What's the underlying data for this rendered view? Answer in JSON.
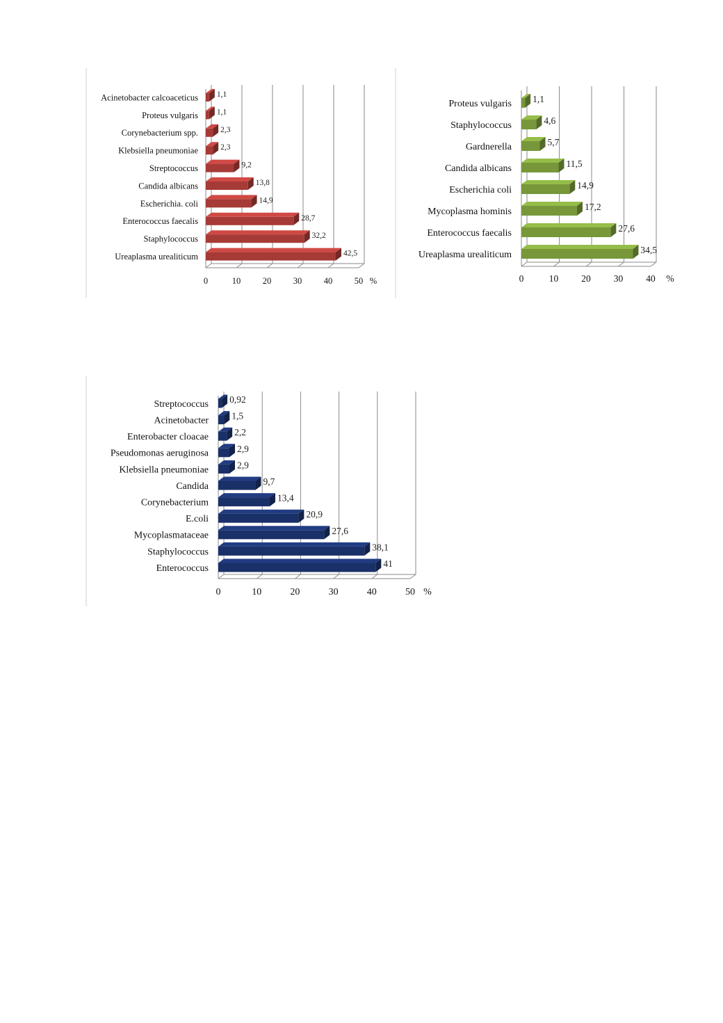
{
  "chart_data": [
    {
      "type": "bar",
      "orientation": "horizontal",
      "categories": [
        "Acinetobacter calcoaceticus",
        "Proteus vulgaris",
        "Corynebacterium spp.",
        "Klebsiella pneumoniae",
        "Streptococcus",
        "Candida albicans",
        "Escherichia. coli",
        "Enterococcus faecalis",
        "Staphylococcus",
        "Ureaplasma urealiticum"
      ],
      "values": [
        1.1,
        1.1,
        2.3,
        2.3,
        9.2,
        13.8,
        14.9,
        28.7,
        32.2,
        42.5
      ],
      "value_labels": [
        "1,1",
        "1,1",
        "2,3",
        "2,3",
        "9,2",
        "13,8",
        "14,9",
        "28,7",
        "32,2",
        "42,5"
      ],
      "xlim": [
        0,
        50
      ],
      "xticks": [
        "0",
        "10",
        "20",
        "30",
        "40",
        "50"
      ],
      "unit": "%",
      "grid": true,
      "color": "#a63a36"
    },
    {
      "type": "bar",
      "orientation": "horizontal",
      "categories": [
        "Proteus vulgaris",
        "Staphylococcus",
        "Gardnerella",
        "Candida albicans",
        "Escherichia coli",
        "Mycoplasma hominis",
        "Enterococcus faecalis",
        "Ureaplasma urealiticum"
      ],
      "values": [
        1.1,
        4.6,
        5.7,
        11.5,
        14.9,
        17.2,
        27.6,
        34.5
      ],
      "value_labels": [
        "1,1",
        "4,6",
        "5,7",
        "11,5",
        "14,9",
        "17,2",
        "27,6",
        "34,5"
      ],
      "xlim": [
        0,
        40
      ],
      "xticks": [
        "0",
        "10",
        "20",
        "30",
        "40"
      ],
      "unit": "%",
      "grid": true,
      "color": "#77973a"
    },
    {
      "type": "bar",
      "orientation": "horizontal",
      "categories": [
        "Streptococcus",
        "Acinetobacter",
        "Enterobacter cloacae",
        "Pseudomonas aeruginosa",
        "Klebsiella pneumoniae",
        "Candida",
        "Corynebacterium",
        "E.coli",
        "Mycoplasmataceae",
        "Staphylococcus",
        "Enterococcus"
      ],
      "values": [
        0.92,
        1.5,
        2.2,
        2.9,
        2.9,
        9.7,
        13.4,
        20.9,
        27.6,
        38.1,
        41
      ],
      "value_labels": [
        "0,92",
        "1,5",
        "2,2",
        "2,9",
        "2,9",
        "9,7",
        "13,4",
        "20,9",
        "27,6",
        "38,1",
        "41"
      ],
      "xlim": [
        0,
        50
      ],
      "xticks": [
        "0",
        "10",
        "20",
        "30",
        "40",
        "50"
      ],
      "unit": "%",
      "grid": true,
      "color": "#1a3068"
    }
  ]
}
